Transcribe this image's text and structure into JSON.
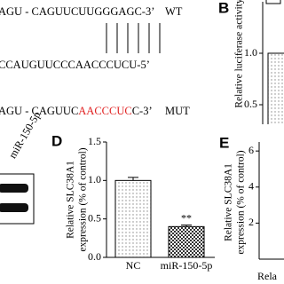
{
  "sequence": {
    "wt_line": "AGU - CAGUUCUUGGGAGC-3’",
    "wt_tag": "WT",
    "mir_line": "CCAUGUUCCCAACCCUCU-5’",
    "mut_prefix": "AGU - CAGUUC",
    "mut_red": "AACCCUC",
    "mut_suffix": "C-3’",
    "mut_tag": "MUT"
  },
  "blot": {
    "label": "miR-150-5p"
  },
  "panel_b": {
    "letter": "B",
    "ylabel": "Relative luciferase activity",
    "values": [
      1.0
    ],
    "ylim": [
      0,
      1.5
    ],
    "yticks": [
      {
        "value": 0.5,
        "label": "0.5"
      },
      {
        "value": 1.0,
        "label": "1.0"
      }
    ]
  },
  "panel_d": {
    "letter": "D",
    "ylabel": [
      "Relative SLC38A1",
      "expression (% of control)"
    ],
    "categories": [
      "NC",
      "miR-150-5p"
    ],
    "values": [
      1.0,
      0.4
    ],
    "errors": [
      0.04,
      0.02
    ],
    "annotations": [
      null,
      "**"
    ],
    "ylim": [
      0,
      1.5
    ],
    "yticks": [
      {
        "value": 0,
        "label": "0.0"
      },
      {
        "value": 0.5,
        "label": "0.5"
      },
      {
        "value": 1.0,
        "label": "1.0"
      },
      {
        "value": 1.5,
        "label": "1.5"
      }
    ]
  },
  "panel_e": {
    "letter": "E",
    "ylabel": [
      "Relative SLC38A1",
      "expression (% of control)"
    ],
    "xlabel": "Rela",
    "ylim": [
      0,
      6.5
    ],
    "yticks": [
      2,
      4,
      6
    ]
  }
}
